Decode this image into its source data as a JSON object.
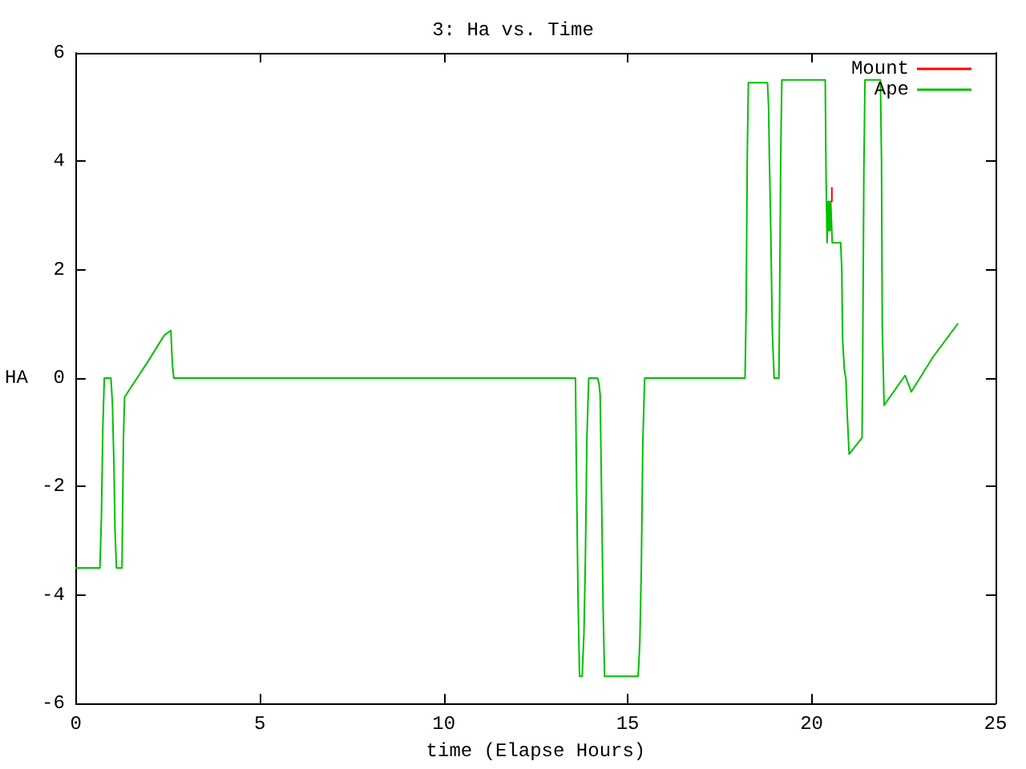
{
  "chart_data": {
    "type": "line",
    "title": "3: Ha vs. Time",
    "xlabel": "time (Elapse Hours)",
    "ylabel": "HA",
    "x": [
      0,
      0.65,
      0.69,
      0.73,
      0.77,
      0.95,
      0.99,
      1.03,
      1.06,
      1.1,
      1.25,
      1.29,
      1.32,
      1.93,
      2.4,
      2.58,
      2.62,
      2.66,
      13.58,
      13.6,
      13.65,
      13.69,
      13.76,
      13.78,
      13.81,
      13.85,
      13.89,
      13.94,
      14.18,
      14.22,
      14.25,
      14.28,
      14.33,
      14.37,
      15.28,
      15.3,
      15.33,
      15.37,
      15.41,
      15.46,
      18.19,
      18.22,
      18.25,
      18.28,
      18.8,
      18.83,
      18.85,
      18.89,
      18.93,
      18.98,
      19.11,
      19.13,
      19.16,
      19.19,
      20.37,
      20.39,
      20.42,
      20.45,
      20.46,
      20.48,
      20.5,
      20.52,
      20.55,
      20.56,
      20.79,
      20.82,
      20.84,
      20.89,
      20.93,
      20.97,
      21.02,
      21.37,
      21.39,
      21.42,
      21.45,
      21.87,
      21.9,
      21.92,
      21.97,
      22.54,
      22.71,
      23.31,
      23.97
    ],
    "series": [
      {
        "name": "Ape",
        "color": "#00c000",
        "values": [
          -3.5,
          -3.5,
          -2.6,
          -0.9,
          0,
          0,
          -0.45,
          -1.55,
          -2.8,
          -3.5,
          -3.5,
          -1.1,
          -0.35,
          0.28,
          0.79,
          0.88,
          0.25,
          0,
          0,
          -1.4,
          -4.1,
          -5.5,
          -5.5,
          -5.2,
          -4.7,
          -3.3,
          -1.1,
          0,
          0,
          -0.1,
          -0.3,
          -1.7,
          -4.2,
          -5.5,
          -5.5,
          -5.3,
          -4.85,
          -3.5,
          -1.2,
          0,
          0,
          1.3,
          4.1,
          5.45,
          5.45,
          5.0,
          4.1,
          2.7,
          0.9,
          0,
          0,
          1.4,
          4.1,
          5.5,
          5.5,
          3.84,
          2.5,
          3.26,
          2.72,
          3.26,
          2.72,
          3.26,
          3.26,
          2.5,
          2.5,
          2.0,
          0.75,
          0.15,
          0,
          -0.7,
          -1.4,
          -1.1,
          0.5,
          3.8,
          5.5,
          5.5,
          4.0,
          1.0,
          -0.5,
          0.05,
          -0.25,
          0.4,
          1.0
        ]
      },
      {
        "name": "Mount",
        "color": "#ff0000",
        "x": [
          20.55,
          20.55
        ],
        "values": [
          3.26,
          3.51
        ]
      }
    ],
    "xlim": [
      0,
      25
    ],
    "xticks": [
      0,
      5,
      10,
      15,
      20,
      25
    ],
    "ylim": [
      -6,
      6
    ],
    "yticks": [
      -6,
      -4,
      -2,
      0,
      2,
      4,
      6
    ],
    "legend": "top right",
    "marker": "none",
    "line_style": "solid"
  }
}
